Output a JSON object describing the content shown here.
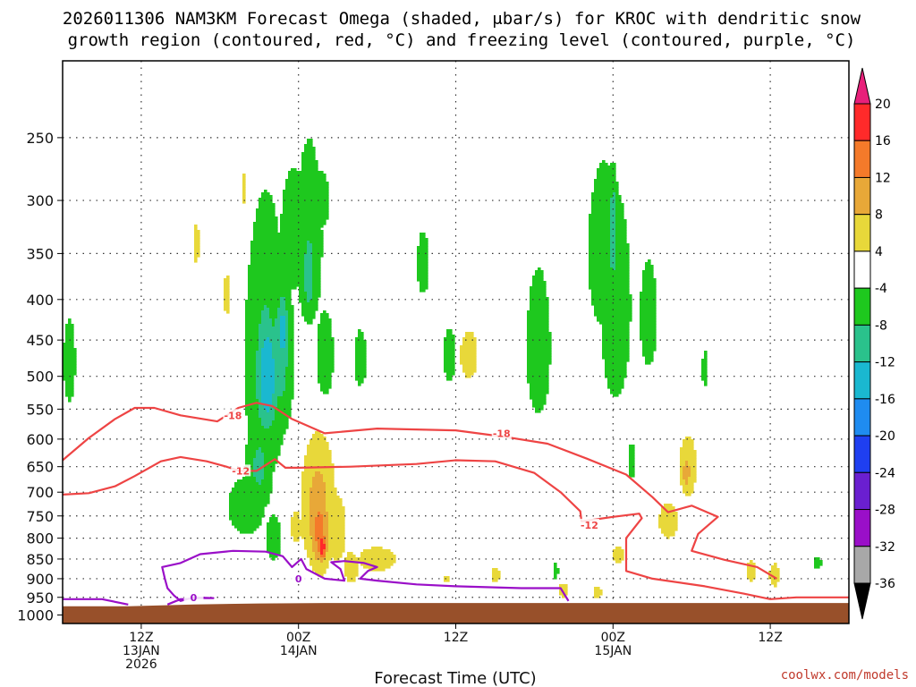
{
  "title_line1": "2026011306 NAM3KM Forecast Omega (shaded, μbar/s) for KROC with dendritic snow",
  "title_line2": "growth region (contoured, red, °C) and freezing level (contoured, purple, °C)",
  "credit": "coolwx.com/models",
  "chart_data": {
    "type": "heatmap",
    "title": "2026011306 NAM3KM Forecast Omega (shaded, μbar/s) for KROC with dendritic snow growth region (contoured, red, °C) and freezing level (contoured, purple, °C)",
    "xlabel": "Forecast Time (UTC)",
    "ylabel": "",
    "x_range_hours": [
      0,
      60
    ],
    "y_range_hPa": [
      200,
      1025
    ],
    "y_scale": "log-pressure",
    "grid": true,
    "y_ticks": [
      250,
      300,
      350,
      400,
      450,
      500,
      550,
      600,
      650,
      700,
      750,
      800,
      850,
      900,
      950,
      1000
    ],
    "x_ticks": [
      {
        "hour": 6,
        "lines": [
          "12Z",
          "13JAN",
          "2026"
        ]
      },
      {
        "hour": 18,
        "lines": [
          "00Z",
          "14JAN"
        ]
      },
      {
        "hour": 30,
        "lines": [
          "12Z"
        ]
      },
      {
        "hour": 42,
        "lines": [
          "00Z",
          "15JAN"
        ]
      },
      {
        "hour": 54,
        "lines": [
          "12Z"
        ]
      }
    ],
    "colorbar": {
      "levels": [
        20,
        16,
        12,
        8,
        4,
        -4,
        -8,
        -12,
        -16,
        -20,
        -24,
        -28,
        -32,
        -36
      ],
      "colors": [
        "#ff2a2a",
        "#f47a2a",
        "#e8a838",
        "#e8d83a",
        "#ffffff",
        "#1ec81e",
        "#2ac28c",
        "#1ab8d0",
        "#1f8cf0",
        "#1f3ff0",
        "#6a1fd0",
        "#9a0fc8",
        "#a8a8a8"
      ],
      "top_arrow_color": "#e8207a",
      "bottom_arrow_color": "#000000"
    },
    "omega_blobs": [
      {
        "h": 0.5,
        "p": 480,
        "dh": 0.7,
        "dp": 90,
        "v": -6
      },
      {
        "h": 10.2,
        "p": 340,
        "dh": 0.4,
        "dp": 40,
        "v": 5
      },
      {
        "h": 12.5,
        "p": 395,
        "dh": 0.4,
        "dp": 50,
        "v": 5
      },
      {
        "h": 13.8,
        "p": 290,
        "dh": 0.3,
        "dp": 25,
        "v": 5
      },
      {
        "h": 14.0,
        "p": 730,
        "dh": 1.8,
        "dp": 80,
        "v": -7
      },
      {
        "h": 15.0,
        "p": 650,
        "dh": 1.2,
        "dp": 100,
        "v": -9
      },
      {
        "h": 15.5,
        "p": 480,
        "dh": 1.8,
        "dp": 210,
        "v": -9
      },
      {
        "h": 15.6,
        "p": 500,
        "dh": 1.0,
        "dp": 100,
        "v": -16
      },
      {
        "h": 16.6,
        "p": 470,
        "dh": 1.1,
        "dp": 130,
        "v": -10
      },
      {
        "h": 16.8,
        "p": 440,
        "dh": 0.5,
        "dp": 60,
        "v": -14
      },
      {
        "h": 16.1,
        "p": 800,
        "dh": 0.9,
        "dp": 80,
        "v": -6
      },
      {
        "h": 17.6,
        "p": 330,
        "dh": 1.5,
        "dp": 90,
        "v": -6
      },
      {
        "h": 18.8,
        "p": 340,
        "dh": 1.3,
        "dp": 120,
        "v": -7
      },
      {
        "h": 18.8,
        "p": 370,
        "dh": 0.6,
        "dp": 60,
        "v": -11
      },
      {
        "h": 19.6,
        "p": 300,
        "dh": 1.2,
        "dp": 40,
        "v": -6
      },
      {
        "h": 20.0,
        "p": 470,
        "dh": 1.0,
        "dp": 90,
        "v": -6
      },
      {
        "h": 17.8,
        "p": 775,
        "dh": 0.6,
        "dp": 55,
        "v": 6
      },
      {
        "h": 19.5,
        "p": 730,
        "dh": 1.4,
        "dp": 150,
        "v": 10
      },
      {
        "h": 19.6,
        "p": 780,
        "dh": 0.9,
        "dp": 100,
        "v": 14
      },
      {
        "h": 19.8,
        "p": 820,
        "dh": 0.4,
        "dp": 40,
        "v": 20
      },
      {
        "h": 20.9,
        "p": 780,
        "dh": 0.9,
        "dp": 100,
        "v": 7
      },
      {
        "h": 22.0,
        "p": 870,
        "dh": 0.7,
        "dp": 50,
        "v": 7
      },
      {
        "h": 24.0,
        "p": 850,
        "dh": 2.2,
        "dp": 45,
        "v": 6
      },
      {
        "h": 22.7,
        "p": 475,
        "dh": 0.7,
        "dp": 60,
        "v": -6
      },
      {
        "h": 27.5,
        "p": 360,
        "dh": 0.7,
        "dp": 50,
        "v": -6
      },
      {
        "h": 29.5,
        "p": 470,
        "dh": 0.7,
        "dp": 55,
        "v": -6
      },
      {
        "h": 31.0,
        "p": 470,
        "dh": 1.0,
        "dp": 50,
        "v": 6
      },
      {
        "h": 36.3,
        "p": 460,
        "dh": 1.4,
        "dp": 150,
        "v": -6
      },
      {
        "h": 41.3,
        "p": 350,
        "dh": 1.6,
        "dp": 110,
        "v": -7
      },
      {
        "h": 42.2,
        "p": 410,
        "dh": 1.5,
        "dp": 160,
        "v": -7
      },
      {
        "h": 42.0,
        "p": 330,
        "dh": 0.4,
        "dp": 60,
        "v": -12
      },
      {
        "h": 44.7,
        "p": 420,
        "dh": 1.0,
        "dp": 100,
        "v": -6
      },
      {
        "h": 43.4,
        "p": 640,
        "dh": 0.4,
        "dp": 50,
        "v": -6
      },
      {
        "h": 47.7,
        "p": 650,
        "dh": 1.0,
        "dp": 90,
        "v": 6
      },
      {
        "h": 47.6,
        "p": 660,
        "dh": 0.5,
        "dp": 50,
        "v": 10
      },
      {
        "h": 46.2,
        "p": 760,
        "dh": 1.1,
        "dp": 60,
        "v": 6
      },
      {
        "h": 42.4,
        "p": 840,
        "dh": 0.7,
        "dp": 30,
        "v": 6
      },
      {
        "h": 49.0,
        "p": 490,
        "dh": 0.3,
        "dp": 40,
        "v": -6
      },
      {
        "h": 52.5,
        "p": 880,
        "dh": 0.6,
        "dp": 40,
        "v": 6
      },
      {
        "h": 54.3,
        "p": 890,
        "dh": 0.6,
        "dp": 45,
        "v": 6
      },
      {
        "h": 57.6,
        "p": 860,
        "dh": 0.5,
        "dp": 20,
        "v": -6
      },
      {
        "h": 38.2,
        "p": 930,
        "dh": 0.5,
        "dp": 30,
        "v": 6
      },
      {
        "h": 40.8,
        "p": 935,
        "dh": 0.5,
        "dp": 25,
        "v": 6
      },
      {
        "h": 37.6,
        "p": 880,
        "dh": 0.3,
        "dp": 30,
        "v": -6
      },
      {
        "h": 33.0,
        "p": 890,
        "dh": 0.5,
        "dp": 25,
        "v": 6
      },
      {
        "h": 29.3,
        "p": 900,
        "dh": 0.3,
        "dp": 15,
        "v": 6
      }
    ],
    "contours": [
      {
        "name": "-18",
        "color": "#ee4444",
        "label": "-18",
        "points": [
          [
            0,
            638
          ],
          [
            2,
            598
          ],
          [
            4,
            566
          ],
          [
            5.5,
            548
          ],
          [
            7,
            548
          ],
          [
            9,
            560
          ],
          [
            11.8,
            570
          ],
          [
            13.4,
            548
          ],
          [
            14.8,
            540
          ],
          [
            16,
            545
          ],
          [
            17.5,
            566
          ],
          [
            20,
            590
          ],
          [
            24,
            582
          ],
          [
            30,
            585
          ],
          [
            34,
            597
          ],
          [
            37,
            608
          ],
          [
            40,
            635
          ],
          [
            43,
            665
          ],
          [
            45,
            710
          ],
          [
            46.2,
            742
          ],
          [
            48,
            728
          ],
          [
            50,
            752
          ],
          [
            48.5,
            790
          ],
          [
            48,
            830
          ],
          [
            50.5,
            852
          ],
          [
            53,
            870
          ],
          [
            54.5,
            900
          ]
        ],
        "label_at": {
          "h": 13.0,
          "p": 560
        }
      },
      {
        "name": "-18b",
        "color": "#ee4444",
        "label": "-18",
        "points": [],
        "label_at": {
          "h": 33.5,
          "p": 590
        }
      },
      {
        "name": "-12",
        "color": "#ee4444",
        "label": "-12",
        "points": [
          [
            0,
            705
          ],
          [
            2,
            702
          ],
          [
            4,
            688
          ],
          [
            5.5,
            668
          ],
          [
            7.5,
            640
          ],
          [
            9,
            632
          ],
          [
            11,
            640
          ],
          [
            12.5,
            650
          ],
          [
            13.5,
            658
          ],
          [
            14.8,
            658
          ],
          [
            16.2,
            636
          ],
          [
            17,
            652
          ],
          [
            18,
            652
          ],
          [
            22,
            650
          ],
          [
            27,
            645
          ],
          [
            30,
            638
          ],
          [
            33,
            640
          ],
          [
            36,
            662
          ],
          [
            38,
            700
          ],
          [
            39.5,
            740
          ],
          [
            39.6,
            762
          ],
          [
            42,
            752
          ],
          [
            44,
            745
          ],
          [
            44.2,
            755
          ],
          [
            43,
            800
          ],
          [
            43,
            880
          ],
          [
            45,
            900
          ],
          [
            49,
            920
          ],
          [
            52,
            940
          ],
          [
            54,
            955
          ],
          [
            56,
            950
          ],
          [
            60,
            950
          ]
        ],
        "label_at": {
          "h": 13.6,
          "p": 658
        }
      },
      {
        "name": "-12b",
        "color": "#ee4444",
        "label": "-12",
        "points": [],
        "label_at": {
          "h": 40.2,
          "p": 770
        }
      },
      {
        "name": "0",
        "color": "#9a0fc8",
        "label": "0",
        "points": [
          [
            8,
            970
          ],
          [
            9,
            955
          ],
          [
            10.5,
            952
          ],
          [
            11.5,
            952
          ],
          [
            10,
            950
          ],
          [
            9,
            960
          ],
          [
            8.5,
            945
          ],
          [
            8,
            925
          ],
          [
            7.8,
            900
          ],
          [
            7.6,
            870
          ],
          [
            9,
            860
          ],
          [
            10.5,
            838
          ],
          [
            13,
            830
          ],
          [
            15.5,
            832
          ],
          [
            16.8,
            843
          ],
          [
            17.5,
            870
          ],
          [
            18.2,
            850
          ],
          [
            18.6,
            875
          ],
          [
            20,
            900
          ],
          [
            21.5,
            905
          ],
          [
            21.2,
            875
          ],
          [
            20.5,
            858
          ],
          [
            21.5,
            855
          ],
          [
            23,
            860
          ],
          [
            24,
            870
          ],
          [
            23.3,
            880
          ],
          [
            22.7,
            900
          ],
          [
            24,
            905
          ],
          [
            27,
            915
          ],
          [
            30,
            920
          ],
          [
            35,
            925
          ],
          [
            38,
            925
          ],
          [
            38.6,
            960
          ]
        ],
        "label_at": {
          "h": 10.0,
          "p": 950
        }
      },
      {
        "name": "0b",
        "color": "#9a0fc8",
        "label": "0",
        "points": [
          [
            0,
            955
          ],
          [
            3,
            955
          ],
          [
            5,
            970
          ]
        ],
        "label_at": {
          "h": 18.0,
          "p": 900
        }
      }
    ]
  }
}
